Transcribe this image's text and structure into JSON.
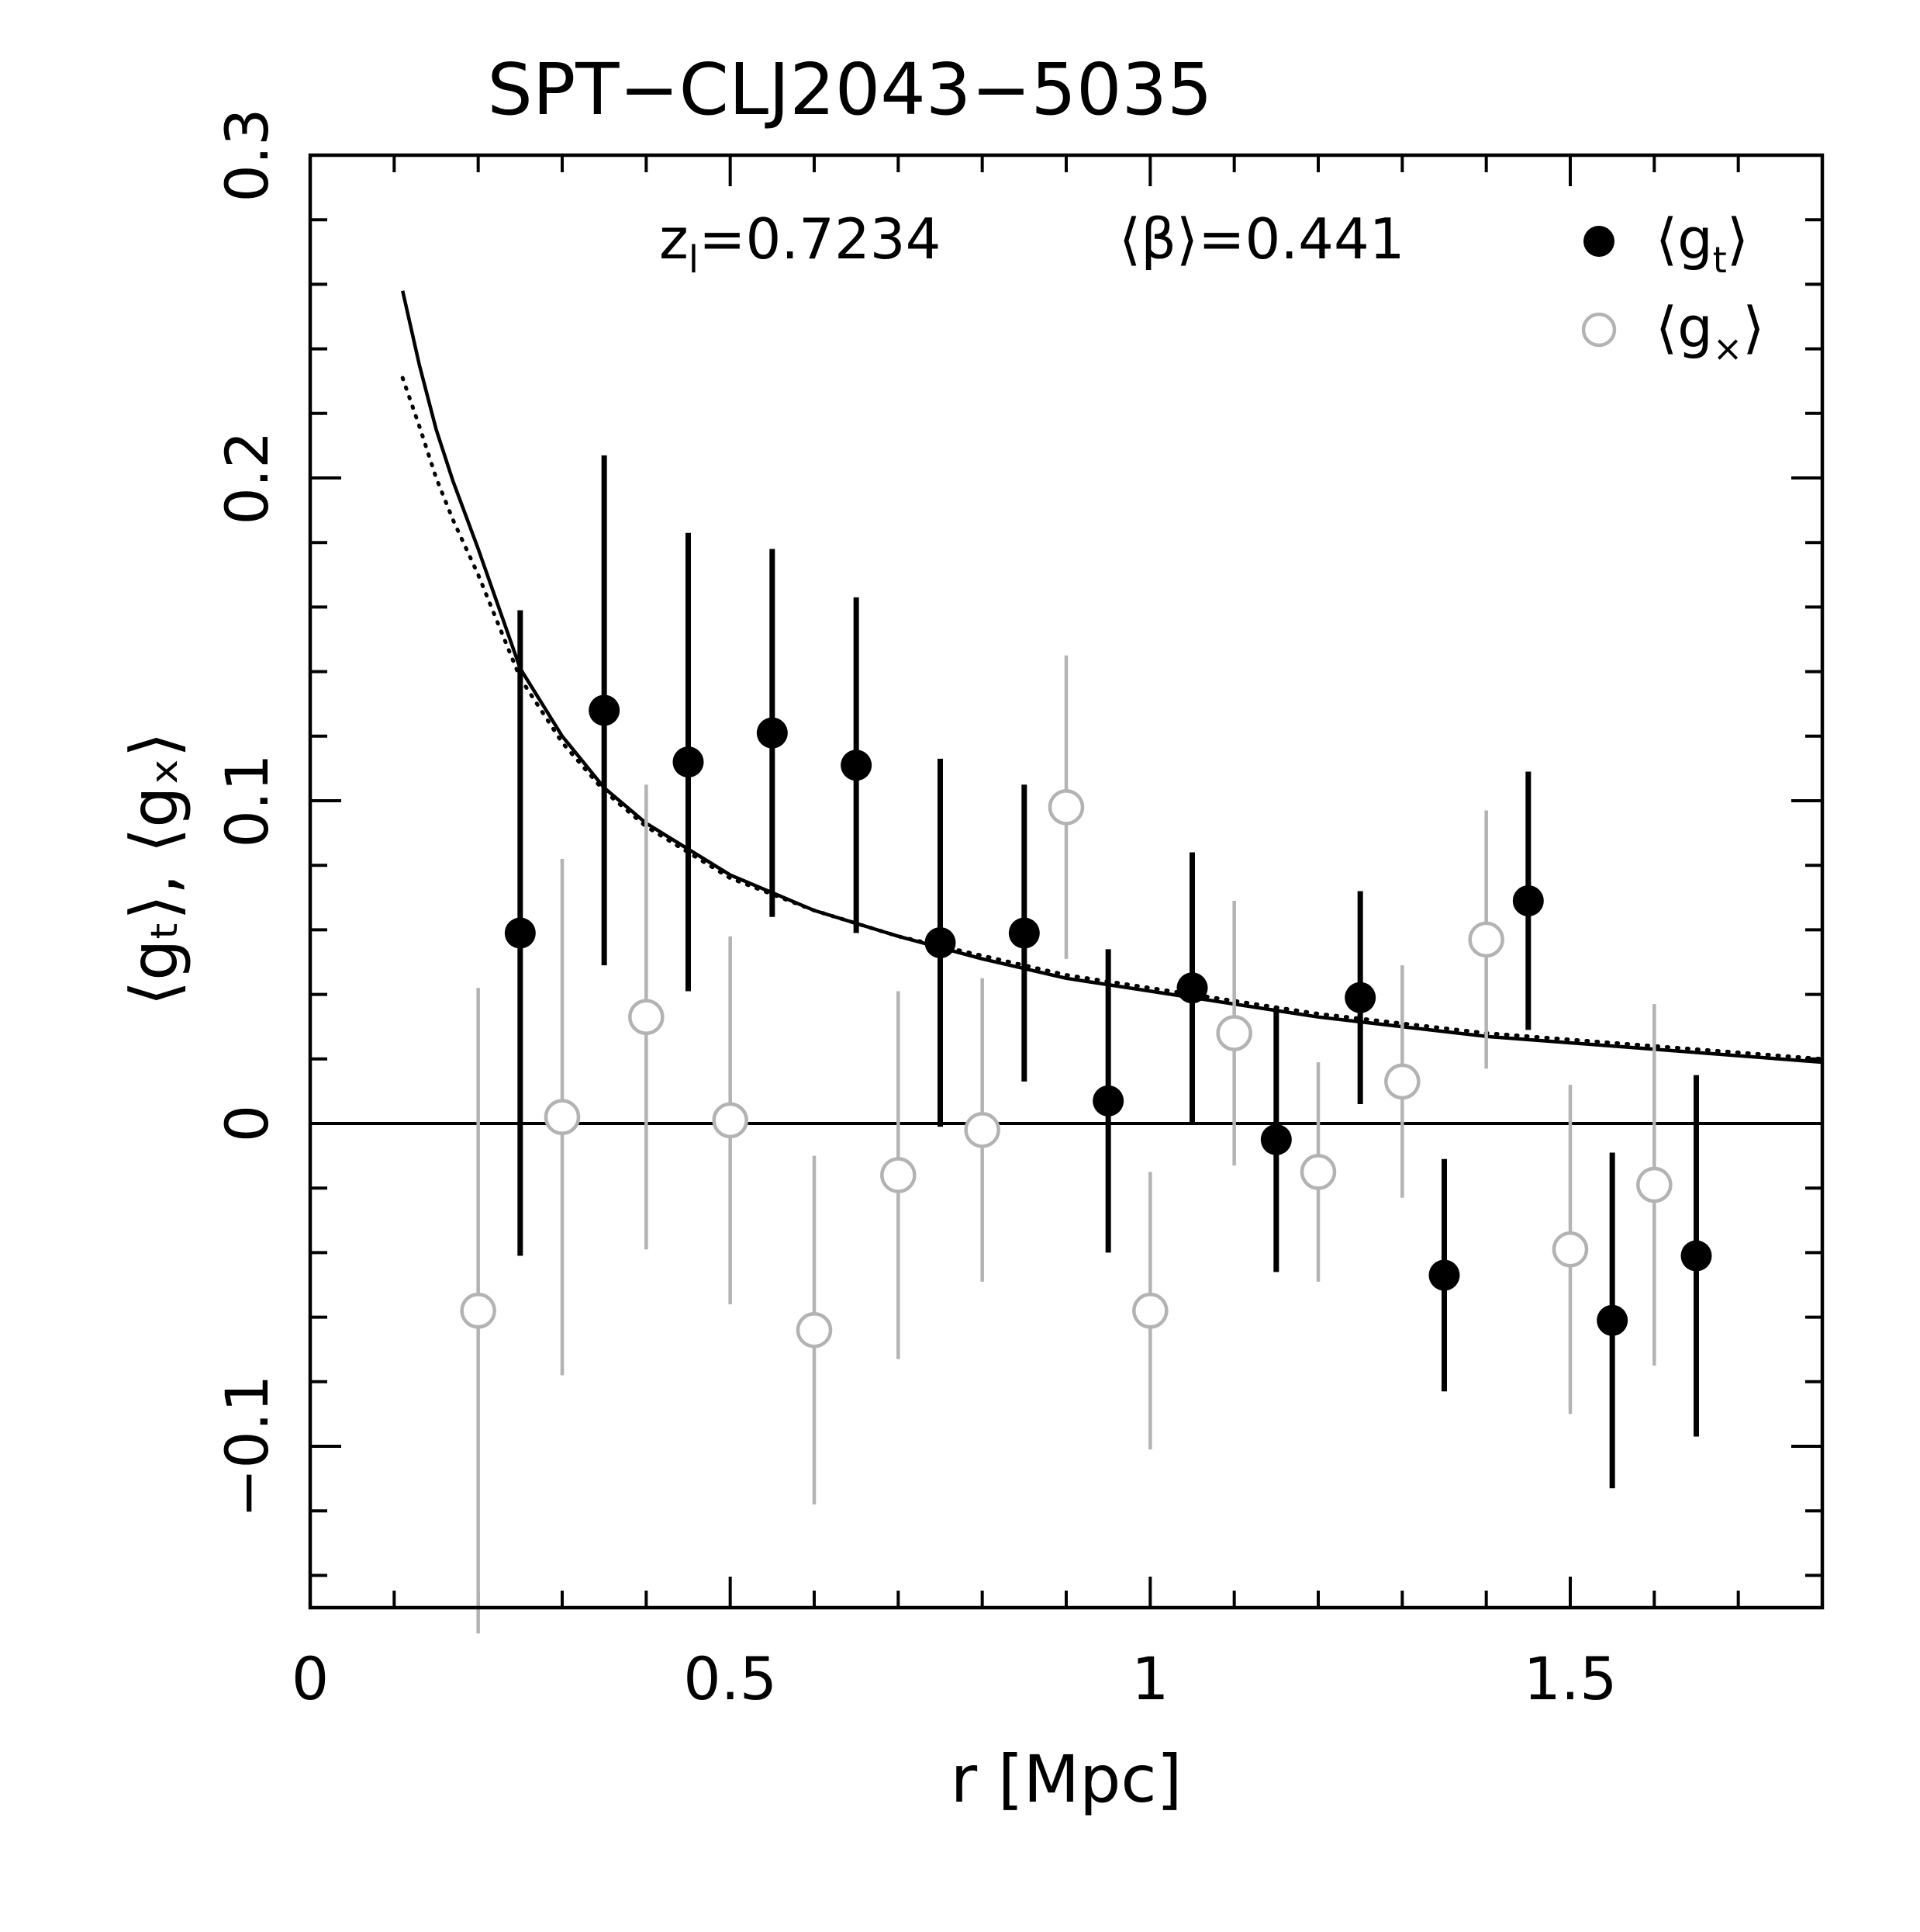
{
  "chart_data": {
    "type": "scatter",
    "title": "SPT−CLJ2043−5035",
    "xlabel": "r  [Mpc]",
    "ylabel": "⟨gₜ⟩,  ⟨gₓ⟩",
    "xlim": [
      0,
      1.8
    ],
    "ylim": [
      -0.15,
      0.3
    ],
    "x_ticks": [
      0,
      0.5,
      1,
      1.5
    ],
    "x_tick_labels": [
      "0",
      "0.5",
      "1",
      "1.5"
    ],
    "y_ticks": [
      -0.1,
      0,
      0.1,
      0.2,
      0.3
    ],
    "y_tick_labels": [
      "−0.1",
      "0",
      "0.1",
      "0.2",
      "0.3"
    ],
    "annotations": {
      "z_label": "z",
      "z_subscript": "l",
      "z_value": "=0.7234",
      "beta_label": "⟨β⟩=0.441"
    },
    "series": [
      {
        "name": "⟨gₜ⟩",
        "legend_base": "⟨g",
        "legend_sub": "t",
        "legend_close": "⟩",
        "marker": "filled-circle",
        "color": "#000000",
        "x": [
          0.25,
          0.35,
          0.45,
          0.55,
          0.65,
          0.75,
          0.85,
          0.95,
          1.05,
          1.15,
          1.25,
          1.35,
          1.45,
          1.55,
          1.65
        ],
        "y": [
          0.059,
          0.128,
          0.112,
          0.121,
          0.111,
          0.056,
          0.059,
          0.007,
          0.042,
          -0.005,
          0.039,
          -0.047,
          0.069,
          -0.061,
          -0.041
        ],
        "err": [
          0.1,
          0.079,
          0.071,
          0.057,
          0.052,
          0.057,
          0.046,
          0.047,
          0.042,
          0.041,
          0.033,
          0.036,
          0.04,
          0.052,
          0.056
        ]
      },
      {
        "name": "⟨gₓ⟩",
        "legend_base": "⟨g",
        "legend_sub": "×",
        "legend_close": "⟩",
        "marker": "open-circle",
        "color": "#b3b3b3",
        "x": [
          0.2,
          0.3,
          0.4,
          0.5,
          0.6,
          0.7,
          0.8,
          0.9,
          1.0,
          1.1,
          1.2,
          1.3,
          1.4,
          1.5,
          1.6
        ],
        "y": [
          -0.058,
          0.002,
          0.033,
          0.001,
          -0.064,
          -0.016,
          -0.002,
          0.098,
          -0.058,
          0.028,
          -0.015,
          0.013,
          0.057,
          -0.039,
          -0.019
        ],
        "err": [
          0.1,
          0.08,
          0.072,
          0.057,
          0.054,
          0.057,
          0.047,
          0.047,
          0.043,
          0.041,
          0.034,
          0.036,
          0.04,
          0.051,
          0.056
        ]
      }
    ],
    "model_curves": [
      {
        "name": "model-solid",
        "style": "solid",
        "x": [
          0.11,
          0.13,
          0.15,
          0.17,
          0.2,
          0.25,
          0.3,
          0.35,
          0.4,
          0.5,
          0.6,
          0.7,
          0.8,
          0.9,
          1.0,
          1.2,
          1.4,
          1.6,
          1.8
        ],
        "y": [
          0.258,
          0.235,
          0.215,
          0.199,
          0.178,
          0.141,
          0.12,
          0.104,
          0.093,
          0.077,
          0.066,
          0.058,
          0.051,
          0.045,
          0.041,
          0.033,
          0.027,
          0.023,
          0.019
        ]
      },
      {
        "name": "model-dotted",
        "style": "dotted",
        "x": [
          0.11,
          0.13,
          0.15,
          0.17,
          0.2,
          0.25,
          0.3,
          0.35,
          0.4,
          0.5,
          0.6,
          0.7,
          0.8,
          0.9,
          1.0,
          1.2,
          1.4,
          1.6,
          1.8
        ],
        "y": [
          0.231,
          0.216,
          0.2,
          0.187,
          0.17,
          0.138,
          0.118,
          0.103,
          0.092,
          0.076,
          0.066,
          0.058,
          0.052,
          0.046,
          0.042,
          0.034,
          0.028,
          0.024,
          0.02
        ]
      }
    ],
    "zero_line": 0
  }
}
